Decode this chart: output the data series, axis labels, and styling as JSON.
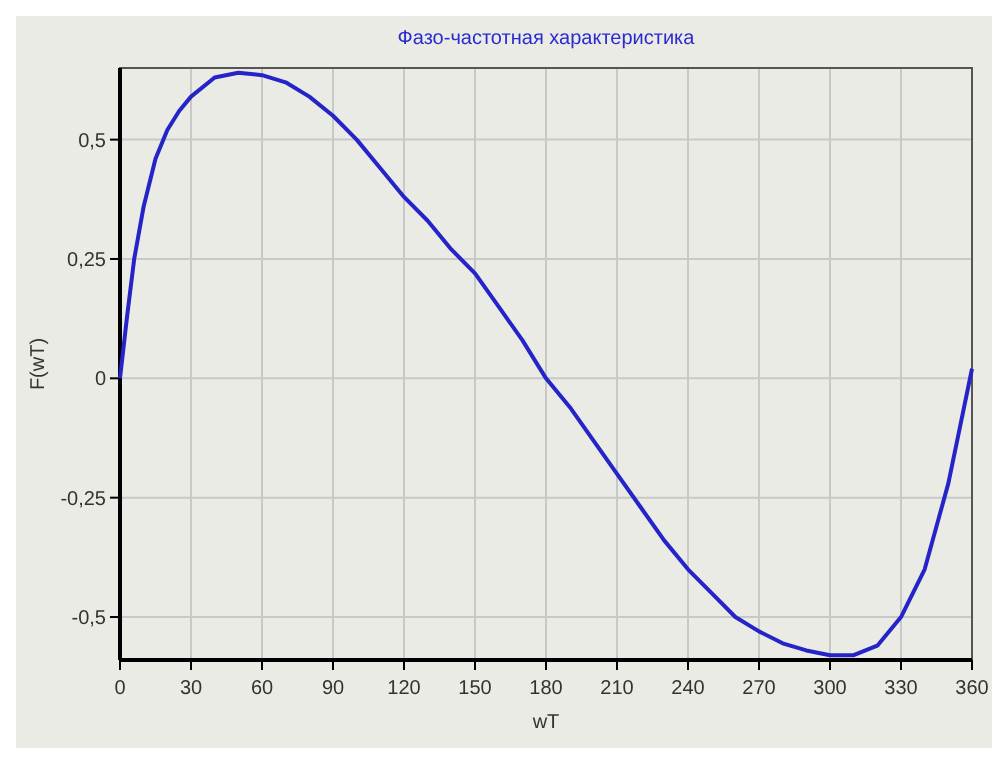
{
  "chart_data": {
    "type": "line",
    "title": "Фазо-частотная характеристика",
    "xlabel": "wT",
    "ylabel": "F(wT)",
    "x": [
      0,
      3,
      6,
      10,
      15,
      20,
      25,
      30,
      40,
      50,
      60,
      70,
      80,
      90,
      100,
      110,
      120,
      130,
      140,
      150,
      160,
      170,
      180,
      190,
      200,
      210,
      220,
      230,
      240,
      250,
      260,
      270,
      280,
      290,
      300,
      305,
      310,
      320,
      330,
      340,
      350,
      355,
      360
    ],
    "series": [
      {
        "color": "#2424c8",
        "values": [
          0,
          0.13,
          0.25,
          0.36,
          0.46,
          0.52,
          0.56,
          0.59,
          0.63,
          0.64,
          0.635,
          0.62,
          0.59,
          0.55,
          0.5,
          0.44,
          0.38,
          0.33,
          0.27,
          0.22,
          0.15,
          0.08,
          0,
          -0.06,
          -0.13,
          -0.2,
          -0.27,
          -0.34,
          -0.4,
          -0.45,
          -0.5,
          -0.53,
          -0.555,
          -0.57,
          -0.58,
          -0.58,
          -0.58,
          -0.56,
          -0.5,
          -0.4,
          -0.22,
          -0.1,
          0.02
        ]
      }
    ],
    "xlim": [
      0,
      360
    ],
    "xticks": [
      0,
      30,
      60,
      90,
      120,
      150,
      180,
      210,
      240,
      270,
      300,
      330,
      360
    ],
    "ylim": [
      -0.59,
      0.65
    ],
    "yticks": [
      {
        "value": -0.5,
        "label": "-0,5"
      },
      {
        "value": -0.25,
        "label": "-0,25"
      },
      0,
      {
        "value": 0.25,
        "label": "0,25"
      },
      {
        "value": 0.5,
        "label": "0,5"
      }
    ],
    "grid": true,
    "marker": "none",
    "line_style": "solid"
  }
}
